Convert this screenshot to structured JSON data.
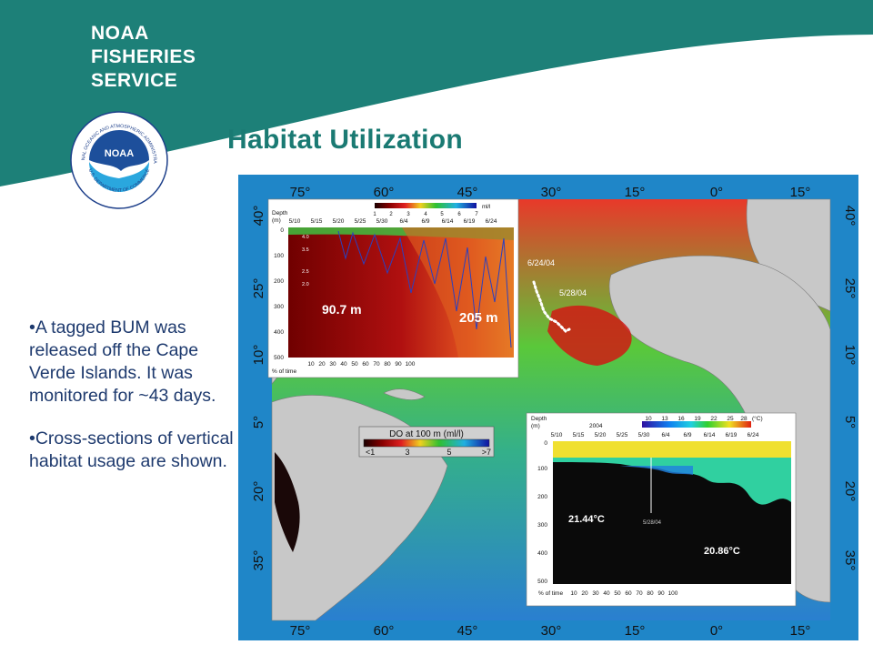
{
  "header": {
    "org_lines": [
      "NOAA",
      "FISHERIES",
      "SERVICE"
    ],
    "logo_text": "NOAA",
    "logo_ring_top": "NATIONAL OCEANIC AND ATMOSPHERIC ADMINISTRATION",
    "logo_ring_bottom": "U.S. DEPARTMENT OF COMMERCE",
    "colors": {
      "teal": "#1d8078",
      "title": "#1a7a73",
      "text": "#1e3a6e"
    }
  },
  "title": "Habitat Utilization",
  "bullets": [
    "•A tagged BUM was released off the Cape Verde Islands. It was monitored for ~43 days.",
    "•Cross-sections of vertical habitat usage are shown."
  ],
  "map": {
    "lon_labels": [
      "75°",
      "60°",
      "45°",
      "30°",
      "15°",
      "0°",
      "15°"
    ],
    "lat_labels": [
      "40°",
      "25°",
      "10°",
      "5°",
      "20°",
      "35°"
    ],
    "track_labels": [
      "6/24/04",
      "5/28/04"
    ],
    "do_colorbar": {
      "title": "DO at 100 m (ml/l)",
      "ticks": [
        "<1",
        "3",
        "5",
        ">7"
      ]
    }
  },
  "inset_do": {
    "scale_ticks": [
      "1",
      "2",
      "3",
      "4",
      "5",
      "6",
      "7"
    ],
    "scale_unit": "ml/l",
    "depth_header": [
      "Depth",
      "(m)"
    ],
    "dates": [
      "5/10",
      "5/15",
      "5/20",
      "5/25",
      "5/30",
      "6/4",
      "6/9",
      "6/14",
      "6/19",
      "6/24"
    ],
    "depths": [
      "0",
      "100",
      "200",
      "300",
      "400",
      "500"
    ],
    "contour_labels": [
      "4.0",
      "3.5",
      "2.5",
      "2.0"
    ],
    "depth_labels": [
      "90.7 m",
      "205 m"
    ],
    "pct_label": "% of time",
    "pct_values": [
      "10",
      "20",
      "30",
      "40",
      "50",
      "60",
      "70",
      "80",
      "90",
      "100"
    ]
  },
  "inset_temp": {
    "scale_ticks": [
      "10",
      "13",
      "16",
      "19",
      "22",
      "25",
      "28"
    ],
    "scale_unit": "(°C)",
    "year": "2004",
    "depth_header": [
      "Depth",
      "(m)"
    ],
    "dates": [
      "5/10",
      "5/15",
      "5/20",
      "5/25",
      "5/30",
      "6/4",
      "6/9",
      "6/14",
      "6/19",
      "6/24"
    ],
    "depths": [
      "0",
      "100",
      "200",
      "300",
      "400",
      "500"
    ],
    "marker_label": "5/28/04",
    "temp_labels": [
      "21.44°C",
      "20.86°C"
    ],
    "pct_label": "% of time",
    "pct_values": [
      "10",
      "20",
      "30",
      "40",
      "50",
      "60",
      "70",
      "80",
      "90",
      "100"
    ]
  }
}
